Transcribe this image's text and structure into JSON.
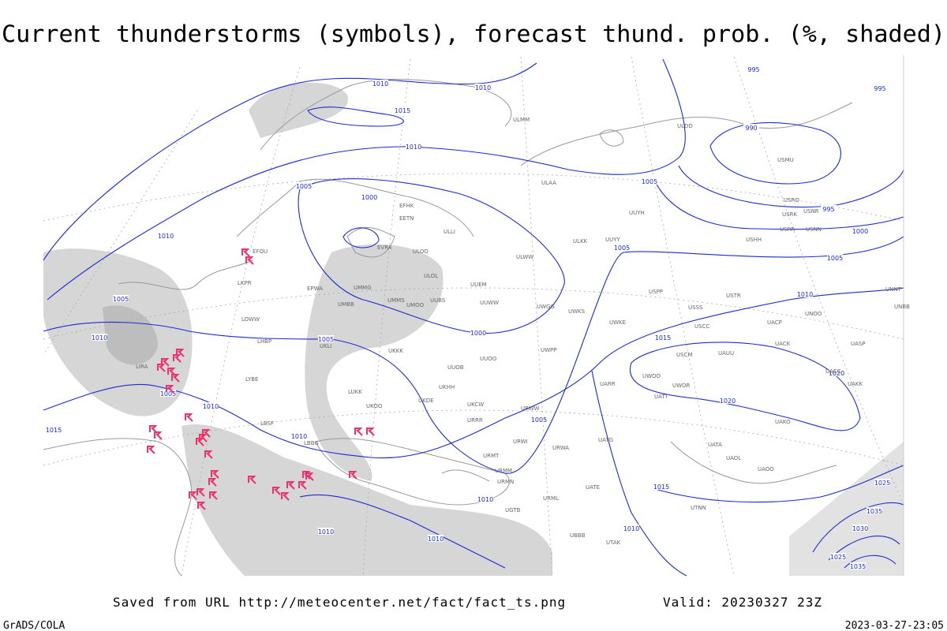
{
  "title": "Current thunderstorms (symbols), forecast thund. prob. (%, shaded)",
  "footer": {
    "source": "Saved from URL http://meteocenter.net/fact/fact_ts.png",
    "valid": "Valid: 20230327 23Z",
    "software": "GrADS/COLA",
    "timestamp": "2023-03-27-23:05"
  },
  "isobar_labels": [
    1010,
    1010,
    1015,
    1010,
    995,
    995,
    990,
    1005,
    1000,
    1005,
    995,
    1000,
    1005,
    1005,
    1010,
    1005,
    1010,
    1010,
    1005,
    1000,
    1015,
    1020,
    1020,
    1005,
    1010,
    1015,
    1005,
    1010,
    1015,
    1010,
    1010,
    1010,
    1010,
    1025,
    1030,
    1035,
    1025,
    1035
  ],
  "stations": [
    "EFOU",
    "EVRA",
    "ULOO",
    "ULOL",
    "UUEM",
    "UUWW",
    "UWGG",
    "UWKS",
    "UWKE",
    "UWPP",
    "UMMG",
    "UMMS",
    "UMOO",
    "UUBS",
    "UKKK",
    "UKLI",
    "UUOB",
    "UUOO",
    "UKHH",
    "UKDE",
    "UKCW",
    "URWW",
    "URRR",
    "UKOO",
    "ULAA",
    "UUYH",
    "UUYY",
    "ULKK",
    "ULWW",
    "USPP",
    "USSS",
    "USCC",
    "USCM",
    "UAUU",
    "UACC",
    "UAKK",
    "UATT",
    "UWOO",
    "UWOR",
    "UARR",
    "UATG",
    "UATA",
    "UAOL",
    "UAOO",
    "URMT",
    "URMM",
    "URMN",
    "URML",
    "URWA",
    "URWI",
    "UGTB",
    "UBBB",
    "UTAK",
    "UATE",
    "LBSF",
    "LBBG",
    "LYBE",
    "LIRA",
    "LKPR",
    "LOWW",
    "LHBP",
    "LUKK",
    "EPWA",
    "UMBB",
    "EETN",
    "ULLI",
    "EFHK",
    "ULMM",
    "ULDD",
    "USMU",
    "USRO",
    "USRK",
    "USNR",
    "USRR",
    "USNN",
    "USHH",
    "UNNT",
    "UNBB",
    "USTR",
    "UNOO",
    "UACP",
    "UACK",
    "UASP",
    "UAKO",
    "UTNN"
  ]
}
